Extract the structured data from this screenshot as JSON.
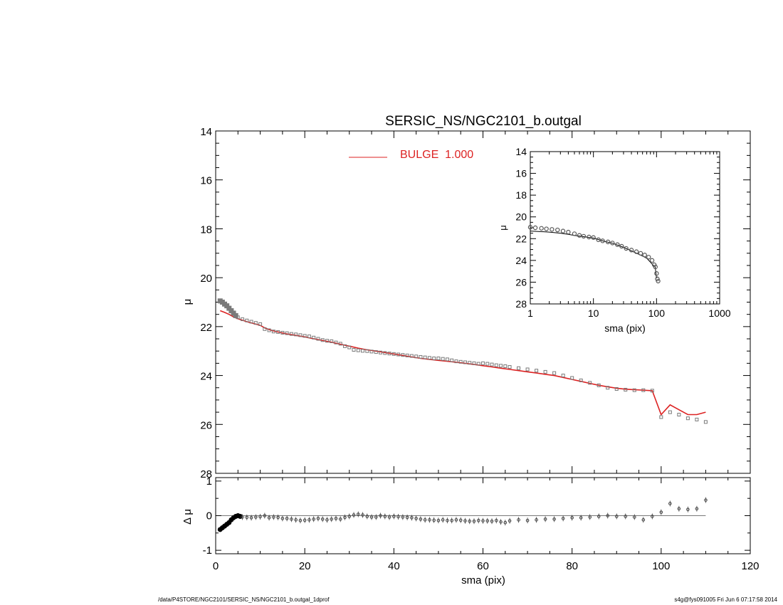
{
  "footer": {
    "path": "/data/P4STORE/NGC2101/SERSIC_NS/NGC2101_b.outgal_1dprof",
    "stamp": "s4g@fys091005  Fri Jun  6 07:17:58 2014"
  },
  "colors": {
    "model": "#dd2222",
    "data_marker": "#7a7a7a",
    "axes": "#000000",
    "zero_line": "#777777"
  },
  "chart_data": [
    {
      "id": "main",
      "type": "scatter",
      "title": "SERSIC_NS/NGC2101_b.outgal",
      "xlabel": "",
      "ylabel": "μ",
      "xlim": [
        0,
        120
      ],
      "ylim": [
        28,
        14
      ],
      "y_inverted": true,
      "yticks": [
        "14",
        "16",
        "18",
        "20",
        "22",
        "24",
        "26",
        "28"
      ],
      "legend": {
        "placement": "top-left",
        "entries": [
          {
            "label": "BULGE  1.000",
            "color": "#dd2222"
          }
        ]
      },
      "series": [
        {
          "name": "",
          "kind": "observed profile (square markers)",
          "x": [
            1,
            1.5,
            2,
            2.5,
            3,
            3.5,
            4,
            4.5,
            5,
            6,
            7,
            8,
            9,
            10,
            11,
            12,
            13,
            14,
            15,
            16,
            17,
            18,
            19,
            20,
            21,
            22,
            23,
            24,
            25,
            26,
            27,
            28,
            29,
            30,
            31,
            32,
            33,
            34,
            35,
            36,
            37,
            38,
            39,
            40,
            41,
            42,
            43,
            44,
            45,
            46,
            47,
            48,
            49,
            50,
            51,
            52,
            53,
            54,
            55,
            56,
            57,
            58,
            59,
            60,
            61,
            62,
            63,
            64,
            65,
            66,
            68,
            70,
            72,
            74,
            76,
            78,
            80,
            82,
            84,
            86,
            88,
            90,
            92,
            94,
            96,
            98,
            100,
            102,
            104,
            106,
            108,
            110
          ],
          "y": [
            20.95,
            21.0,
            21.08,
            21.15,
            21.25,
            21.35,
            21.45,
            21.55,
            21.62,
            21.7,
            21.75,
            21.8,
            21.85,
            21.9,
            22.1,
            22.15,
            22.2,
            22.22,
            22.25,
            22.27,
            22.3,
            22.32,
            22.35,
            22.38,
            22.4,
            22.45,
            22.5,
            22.55,
            22.58,
            22.6,
            22.65,
            22.7,
            22.8,
            22.85,
            22.95,
            22.97,
            22.99,
            23.0,
            23.02,
            23.04,
            23.06,
            23.08,
            23.1,
            23.12,
            23.14,
            23.16,
            23.18,
            23.2,
            23.22,
            23.24,
            23.26,
            23.28,
            23.3,
            23.3,
            23.32,
            23.34,
            23.38,
            23.42,
            23.44,
            23.46,
            23.48,
            23.5,
            23.52,
            23.5,
            23.52,
            23.55,
            23.58,
            23.6,
            23.62,
            23.65,
            23.7,
            23.75,
            23.8,
            23.85,
            23.9,
            24.0,
            24.1,
            24.2,
            24.3,
            24.4,
            24.5,
            24.55,
            24.58,
            24.6,
            24.6,
            24.62,
            25.7,
            25.5,
            25.6,
            25.75,
            25.8,
            25.9
          ]
        },
        {
          "name": "BULGE  1.000",
          "kind": "model line",
          "x": [
            1,
            2,
            3,
            4,
            5,
            6,
            7,
            8,
            9,
            10,
            11,
            12,
            13,
            14,
            15,
            16,
            17,
            18,
            19,
            20,
            22,
            24,
            26,
            28,
            30,
            32,
            34,
            36,
            38,
            40,
            42,
            44,
            46,
            48,
            50,
            52,
            54,
            56,
            58,
            60,
            62,
            64,
            66,
            68,
            70,
            72,
            74,
            76,
            78,
            80,
            82,
            84,
            86,
            88,
            90,
            92,
            94,
            96,
            98,
            100,
            102,
            104,
            106,
            108,
            110
          ],
          "y": [
            21.35,
            21.42,
            21.5,
            21.6,
            21.68,
            21.74,
            21.8,
            21.85,
            21.9,
            21.95,
            22.05,
            22.12,
            22.18,
            22.22,
            22.26,
            22.3,
            22.33,
            22.36,
            22.39,
            22.42,
            22.5,
            22.57,
            22.64,
            22.72,
            22.8,
            22.88,
            22.95,
            23.0,
            23.06,
            23.12,
            23.18,
            23.24,
            23.3,
            23.34,
            23.38,
            23.42,
            23.46,
            23.5,
            23.55,
            23.6,
            23.65,
            23.7,
            23.75,
            23.8,
            23.85,
            23.9,
            23.95,
            24.0,
            24.08,
            24.16,
            24.24,
            24.32,
            24.4,
            24.46,
            24.52,
            24.56,
            24.58,
            24.6,
            24.62,
            25.6,
            25.2,
            25.4,
            25.6,
            25.6,
            25.5
          ]
        }
      ]
    },
    {
      "id": "residual",
      "type": "scatter",
      "xlabel": "sma (pix)",
      "ylabel": "Δ μ",
      "xlim": [
        0,
        120
      ],
      "ylim": [
        -1.1,
        1.1
      ],
      "xticks": [
        "0",
        "20",
        "40",
        "60",
        "80",
        "100",
        "120"
      ],
      "yticks": [
        "1",
        "0",
        "-1"
      ],
      "zero_line": 0,
      "series": [
        {
          "name": "",
          "x": [
            1,
            1.5,
            2,
            2.5,
            3,
            3.5,
            4,
            4.5,
            5,
            5.5,
            6,
            7,
            8,
            9,
            10,
            11,
            12,
            13,
            14,
            15,
            16,
            17,
            18,
            19,
            20,
            21,
            22,
            23,
            24,
            25,
            26,
            27,
            28,
            29,
            30,
            31,
            32,
            33,
            34,
            35,
            36,
            37,
            38,
            39,
            40,
            41,
            42,
            43,
            44,
            45,
            46,
            47,
            48,
            49,
            50,
            51,
            52,
            53,
            54,
            55,
            56,
            57,
            58,
            59,
            60,
            61,
            62,
            63,
            64,
            65,
            66,
            68,
            70,
            72,
            74,
            76,
            78,
            80,
            82,
            84,
            86,
            88,
            90,
            92,
            94,
            96,
            98,
            100,
            102,
            104,
            106,
            108,
            110
          ],
          "y": [
            -0.4,
            -0.35,
            -0.3,
            -0.25,
            -0.2,
            -0.12,
            -0.06,
            -0.02,
            0.0,
            -0.02,
            -0.04,
            -0.05,
            -0.06,
            -0.04,
            -0.03,
            0.0,
            -0.06,
            -0.04,
            -0.05,
            -0.08,
            -0.08,
            -0.1,
            -0.12,
            -0.14,
            -0.13,
            -0.12,
            -0.1,
            -0.08,
            -0.1,
            -0.12,
            -0.1,
            -0.08,
            -0.1,
            -0.05,
            -0.02,
            0.02,
            0.04,
            0.02,
            -0.02,
            -0.04,
            -0.04,
            0.0,
            -0.02,
            -0.04,
            -0.02,
            -0.03,
            -0.04,
            -0.05,
            -0.06,
            -0.08,
            -0.1,
            -0.12,
            -0.12,
            -0.13,
            -0.14,
            -0.12,
            -0.14,
            -0.14,
            -0.12,
            -0.13,
            -0.15,
            -0.16,
            -0.16,
            -0.14,
            -0.15,
            -0.15,
            -0.16,
            -0.14,
            -0.18,
            -0.2,
            -0.15,
            -0.12,
            -0.14,
            -0.12,
            -0.1,
            -0.1,
            -0.08,
            -0.06,
            -0.06,
            -0.04,
            -0.02,
            0.0,
            -0.02,
            -0.02,
            -0.04,
            -0.12,
            -0.02,
            0.1,
            0.35,
            0.2,
            0.18,
            0.2,
            0.45
          ]
        }
      ]
    },
    {
      "id": "inset",
      "type": "scatter",
      "xlabel": "sma (pix)",
      "ylabel": "μ",
      "xlim": [
        1,
        1000
      ],
      "x_scale": "log",
      "ylim": [
        28,
        14
      ],
      "y_inverted": true,
      "xticks": [
        "1",
        "10",
        "100",
        "1000"
      ],
      "yticks": [
        "14",
        "16",
        "18",
        "20",
        "22",
        "24",
        "26",
        "28"
      ],
      "series": [
        {
          "name": "",
          "kind": "observed profile",
          "x": [
            1,
            1.2,
            1.5,
            1.8,
            2.2,
            2.7,
            3.3,
            4,
            5,
            6,
            7,
            8.5,
            10,
            12,
            14,
            17,
            20,
            24,
            28,
            33,
            40,
            48,
            56,
            65,
            75,
            85,
            92,
            96,
            100,
            103,
            106
          ],
          "y": [
            20.95,
            21.0,
            21.05,
            21.1,
            21.15,
            21.2,
            21.3,
            21.4,
            21.55,
            21.7,
            21.78,
            21.85,
            21.9,
            22.1,
            22.2,
            22.3,
            22.4,
            22.55,
            22.7,
            22.9,
            23.05,
            23.2,
            23.35,
            23.5,
            23.7,
            24.0,
            24.4,
            24.6,
            25.2,
            25.7,
            25.9
          ]
        },
        {
          "name": "",
          "kind": "model line",
          "x": [
            1,
            2,
            3,
            4,
            5,
            7,
            10,
            15,
            20,
            30,
            40,
            50,
            60,
            70,
            80,
            90,
            95,
            100,
            105
          ],
          "y": [
            21.3,
            21.4,
            21.5,
            21.6,
            21.7,
            21.82,
            21.95,
            22.25,
            22.42,
            22.8,
            23.12,
            23.38,
            23.6,
            23.8,
            24.16,
            24.5,
            24.6,
            25.6,
            25.5
          ]
        }
      ]
    }
  ]
}
